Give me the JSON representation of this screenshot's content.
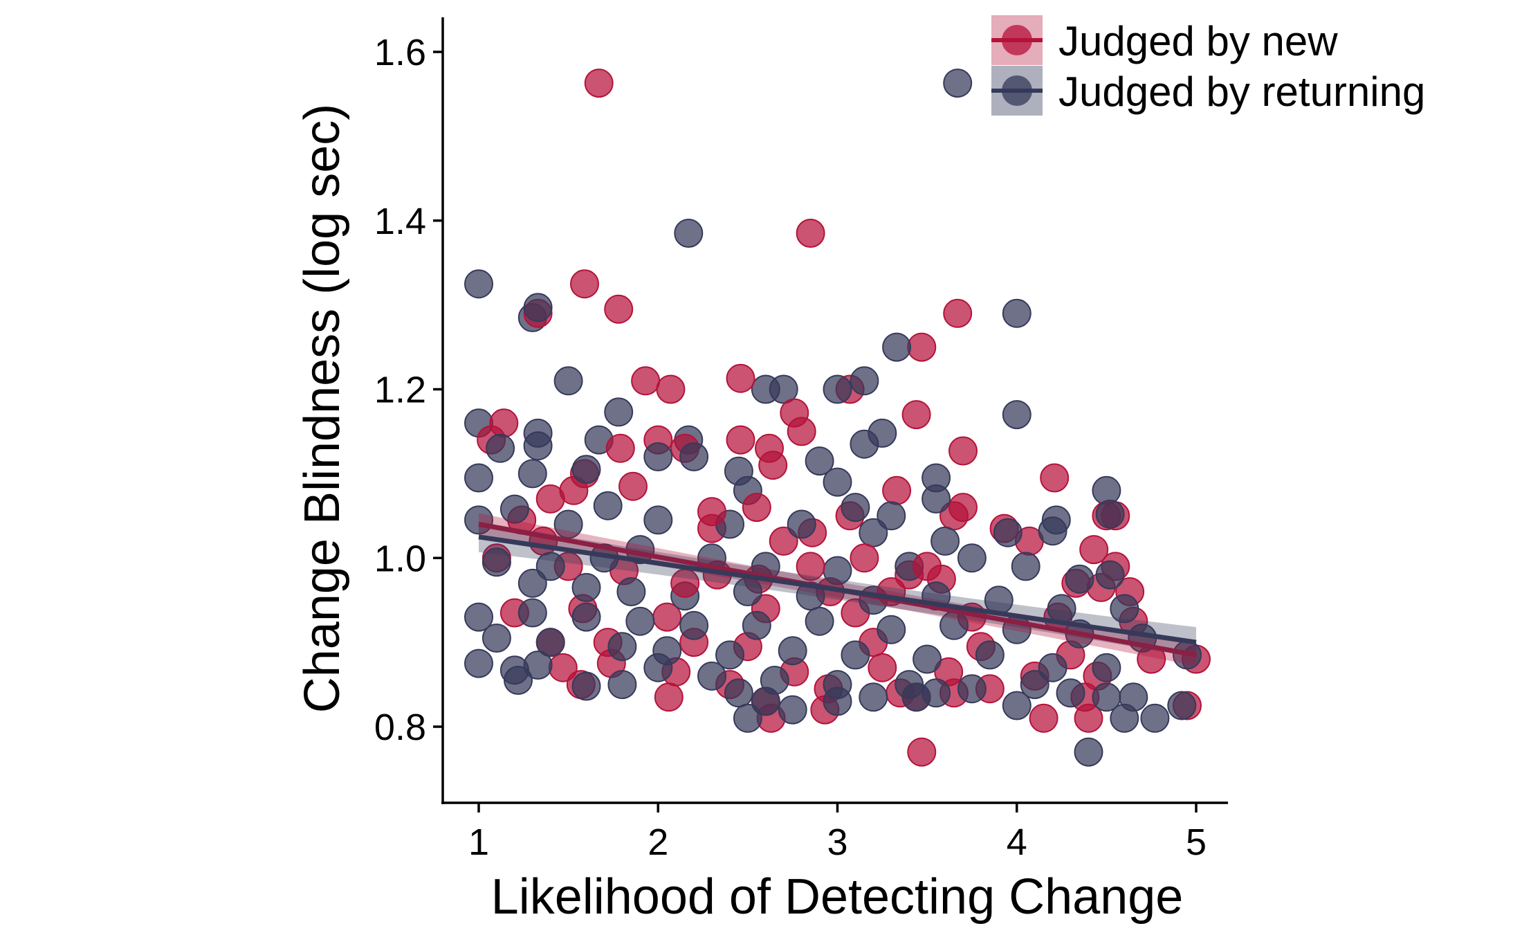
{
  "chart_data": {
    "type": "scatter",
    "title": "",
    "xlabel": "Likelihood of Detecting Change",
    "ylabel": "Change Blindness (log sec)",
    "xlim": [
      0.8,
      5.2
    ],
    "ylim": [
      0.71,
      1.645
    ],
    "x_ticks": [
      1,
      2,
      3,
      4,
      5
    ],
    "x_tick_labels": [
      "1",
      "2",
      "3",
      "4",
      "5"
    ],
    "y_ticks": [
      0.8,
      1.0,
      1.2,
      1.4,
      1.6
    ],
    "y_tick_labels": [
      "0.8",
      "1.0",
      "1.2",
      "1.4",
      "1.6"
    ],
    "grid": false,
    "legend_position": "top-right",
    "series": [
      {
        "name": "Judged by new",
        "color": "#B5123A",
        "fit_line": {
          "x": [
            1.0,
            5.0
          ],
          "y": [
            1.04,
            0.885
          ]
        },
        "points": [
          [
            1.67,
            1.563
          ],
          [
            2.85,
            1.385
          ],
          [
            1.59,
            1.325
          ],
          [
            1.78,
            1.295
          ],
          [
            1.33,
            1.29
          ],
          [
            3.67,
            1.29
          ],
          [
            3.47,
            1.25
          ],
          [
            1.93,
            1.21
          ],
          [
            2.07,
            1.2
          ],
          [
            2.46,
            1.213
          ],
          [
            3.07,
            1.2
          ],
          [
            2.76,
            1.172
          ],
          [
            3.44,
            1.17
          ],
          [
            2.8,
            1.15
          ],
          [
            1.07,
            1.14
          ],
          [
            1.14,
            1.16
          ],
          [
            2.0,
            1.14
          ],
          [
            2.15,
            1.13
          ],
          [
            2.46,
            1.14
          ],
          [
            3.7,
            1.127
          ],
          [
            2.62,
            1.13
          ],
          [
            1.59,
            1.1
          ],
          [
            1.79,
            1.13
          ],
          [
            2.64,
            1.11
          ],
          [
            4.21,
            1.095
          ],
          [
            3.33,
            1.08
          ],
          [
            1.4,
            1.07
          ],
          [
            1.53,
            1.08
          ],
          [
            1.86,
            1.085
          ],
          [
            3.07,
            1.05
          ],
          [
            3.65,
            1.05
          ],
          [
            3.7,
            1.06
          ],
          [
            4.5,
            1.05
          ],
          [
            4.55,
            1.05
          ],
          [
            1.1,
            1.0
          ],
          [
            1.36,
            1.02
          ],
          [
            1.24,
            1.045
          ],
          [
            2.3,
            1.035
          ],
          [
            2.7,
            1.02
          ],
          [
            2.86,
            1.03
          ],
          [
            3.93,
            1.035
          ],
          [
            4.07,
            1.02
          ],
          [
            4.43,
            1.01
          ],
          [
            4.55,
            0.99
          ],
          [
            1.5,
            0.99
          ],
          [
            1.81,
            0.985
          ],
          [
            2.33,
            0.98
          ],
          [
            2.56,
            0.975
          ],
          [
            2.96,
            0.96
          ],
          [
            3.4,
            0.98
          ],
          [
            3.58,
            0.975
          ],
          [
            4.33,
            0.97
          ],
          [
            4.47,
            0.965
          ],
          [
            4.63,
            0.96
          ],
          [
            1.2,
            0.935
          ],
          [
            1.58,
            0.94
          ],
          [
            2.05,
            0.93
          ],
          [
            2.6,
            0.94
          ],
          [
            3.1,
            0.935
          ],
          [
            3.75,
            0.93
          ],
          [
            4.23,
            0.93
          ],
          [
            4.65,
            0.925
          ],
          [
            1.4,
            0.9
          ],
          [
            1.72,
            0.9
          ],
          [
            2.2,
            0.9
          ],
          [
            2.5,
            0.895
          ],
          [
            3.2,
            0.9
          ],
          [
            3.8,
            0.895
          ],
          [
            4.3,
            0.885
          ],
          [
            4.75,
            0.88
          ],
          [
            5.0,
            0.88
          ],
          [
            1.47,
            0.87
          ],
          [
            1.74,
            0.875
          ],
          [
            2.1,
            0.865
          ],
          [
            2.76,
            0.865
          ],
          [
            3.25,
            0.87
          ],
          [
            3.62,
            0.865
          ],
          [
            4.1,
            0.86
          ],
          [
            4.45,
            0.86
          ],
          [
            1.57,
            0.85
          ],
          [
            2.4,
            0.85
          ],
          [
            2.95,
            0.845
          ],
          [
            3.35,
            0.84
          ],
          [
            3.85,
            0.845
          ],
          [
            4.38,
            0.835
          ],
          [
            4.95,
            0.825
          ],
          [
            2.06,
            0.835
          ],
          [
            2.6,
            0.83
          ],
          [
            2.93,
            0.82
          ],
          [
            3.44,
            0.835
          ],
          [
            3.65,
            0.84
          ],
          [
            4.15,
            0.81
          ],
          [
            4.4,
            0.81
          ],
          [
            2.63,
            0.81
          ],
          [
            3.47,
            0.77
          ],
          [
            2.3,
            1.055
          ],
          [
            2.55,
            1.06
          ],
          [
            3.15,
            1.0
          ],
          [
            3.3,
            0.96
          ],
          [
            3.5,
            0.99
          ],
          [
            2.85,
            0.99
          ],
          [
            2.15,
            0.97
          ]
        ]
      },
      {
        "name": "Judged by returning",
        "color": "#363A5A",
        "fit_line": {
          "x": [
            1.0,
            5.0
          ],
          "y": [
            1.025,
            0.9
          ]
        },
        "points": [
          [
            3.67,
            1.563
          ],
          [
            2.17,
            1.385
          ],
          [
            1.0,
            1.325
          ],
          [
            1.3,
            1.285
          ],
          [
            1.33,
            1.297
          ],
          [
            4.0,
            1.29
          ],
          [
            3.33,
            1.25
          ],
          [
            1.5,
            1.21
          ],
          [
            2.6,
            1.2
          ],
          [
            2.7,
            1.2
          ],
          [
            3.0,
            1.2
          ],
          [
            3.15,
            1.21
          ],
          [
            4.0,
            1.17
          ],
          [
            1.0,
            1.16
          ],
          [
            1.78,
            1.173
          ],
          [
            1.33,
            1.148
          ],
          [
            2.17,
            1.14
          ],
          [
            3.25,
            1.148
          ],
          [
            3.15,
            1.135
          ],
          [
            1.12,
            1.13
          ],
          [
            1.33,
            1.133
          ],
          [
            1.67,
            1.14
          ],
          [
            2.45,
            1.103
          ],
          [
            3.0,
            1.09
          ],
          [
            1.0,
            1.095
          ],
          [
            2.9,
            1.115
          ],
          [
            3.55,
            1.095
          ],
          [
            4.5,
            1.08
          ],
          [
            1.3,
            1.1
          ],
          [
            1.6,
            1.105
          ],
          [
            2.0,
            1.12
          ],
          [
            2.2,
            1.12
          ],
          [
            2.5,
            1.08
          ],
          [
            3.1,
            1.06
          ],
          [
            3.55,
            1.07
          ],
          [
            3.3,
            1.05
          ],
          [
            4.22,
            1.045
          ],
          [
            4.52,
            1.052
          ],
          [
            1.0,
            1.045
          ],
          [
            1.2,
            1.058
          ],
          [
            1.5,
            1.04
          ],
          [
            1.72,
            1.062
          ],
          [
            2.0,
            1.045
          ],
          [
            2.4,
            1.04
          ],
          [
            2.8,
            1.04
          ],
          [
            3.2,
            1.03
          ],
          [
            3.6,
            1.02
          ],
          [
            3.95,
            1.03
          ],
          [
            4.2,
            1.032
          ],
          [
            1.1,
            0.995
          ],
          [
            1.4,
            0.99
          ],
          [
            1.7,
            1.0
          ],
          [
            1.9,
            1.01
          ],
          [
            2.3,
            1.0
          ],
          [
            2.6,
            0.99
          ],
          [
            3.0,
            0.985
          ],
          [
            3.4,
            0.99
          ],
          [
            3.75,
            1.0
          ],
          [
            4.05,
            0.99
          ],
          [
            4.35,
            0.975
          ],
          [
            4.52,
            0.98
          ],
          [
            1.3,
            0.97
          ],
          [
            1.6,
            0.965
          ],
          [
            1.85,
            0.96
          ],
          [
            2.15,
            0.955
          ],
          [
            2.5,
            0.96
          ],
          [
            2.85,
            0.955
          ],
          [
            3.2,
            0.95
          ],
          [
            3.55,
            0.955
          ],
          [
            3.9,
            0.95
          ],
          [
            4.25,
            0.94
          ],
          [
            4.6,
            0.94
          ],
          [
            1.0,
            0.93
          ],
          [
            1.3,
            0.935
          ],
          [
            1.6,
            0.93
          ],
          [
            1.9,
            0.925
          ],
          [
            2.2,
            0.92
          ],
          [
            2.55,
            0.92
          ],
          [
            2.9,
            0.925
          ],
          [
            3.3,
            0.915
          ],
          [
            3.65,
            0.92
          ],
          [
            4.0,
            0.915
          ],
          [
            4.35,
            0.91
          ],
          [
            4.7,
            0.905
          ],
          [
            1.1,
            0.905
          ],
          [
            1.4,
            0.9
          ],
          [
            1.8,
            0.895
          ],
          [
            2.05,
            0.89
          ],
          [
            2.4,
            0.885
          ],
          [
            2.75,
            0.89
          ],
          [
            3.1,
            0.885
          ],
          [
            3.5,
            0.88
          ],
          [
            3.85,
            0.885
          ],
          [
            4.2,
            0.87
          ],
          [
            4.5,
            0.87
          ],
          [
            4.95,
            0.885
          ],
          [
            1.0,
            0.875
          ],
          [
            1.2,
            0.867
          ],
          [
            1.33,
            0.873
          ],
          [
            1.8,
            0.85
          ],
          [
            2.0,
            0.87
          ],
          [
            2.3,
            0.86
          ],
          [
            2.65,
            0.855
          ],
          [
            3.0,
            0.85
          ],
          [
            3.4,
            0.85
          ],
          [
            3.75,
            0.845
          ],
          [
            4.1,
            0.85
          ],
          [
            4.3,
            0.84
          ],
          [
            4.65,
            0.835
          ],
          [
            1.22,
            0.855
          ],
          [
            1.6,
            0.848
          ],
          [
            2.45,
            0.84
          ],
          [
            3.2,
            0.835
          ],
          [
            3.55,
            0.84
          ],
          [
            4.0,
            0.825
          ],
          [
            4.5,
            0.835
          ],
          [
            4.92,
            0.825
          ],
          [
            2.5,
            0.81
          ],
          [
            2.75,
            0.82
          ],
          [
            3.44,
            0.835
          ],
          [
            4.4,
            0.77
          ],
          [
            4.6,
            0.81
          ],
          [
            4.77,
            0.81
          ],
          [
            2.6,
            0.83
          ],
          [
            3.0,
            0.83
          ]
        ]
      }
    ]
  }
}
